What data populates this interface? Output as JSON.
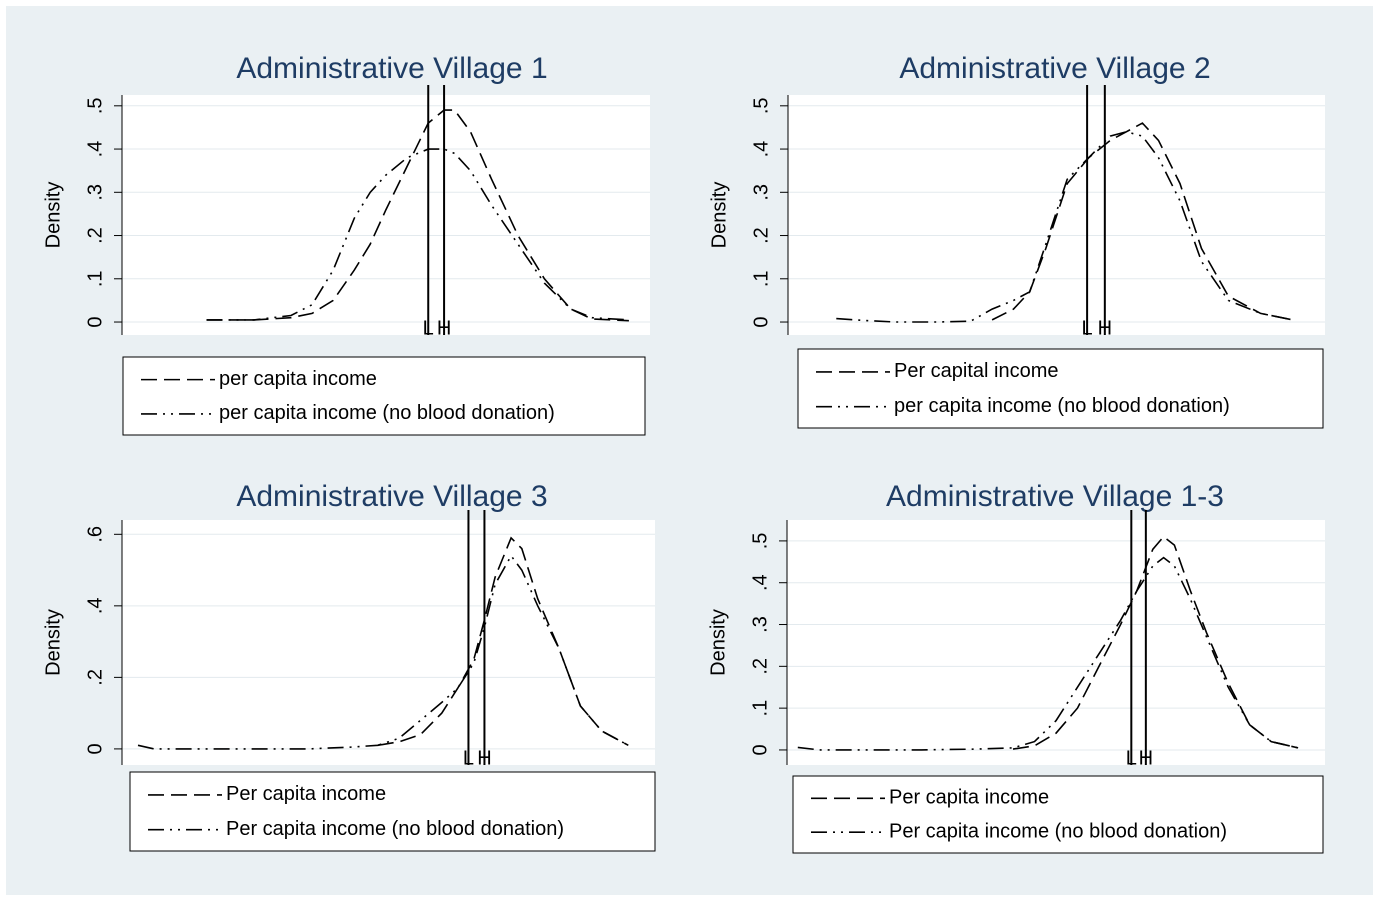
{
  "chart_data": [
    {
      "type": "line",
      "title": "Administrative Village 1",
      "y_label": "Density",
      "x": [
        16,
        25,
        32,
        36,
        40,
        44,
        47,
        50,
        54,
        58,
        61,
        63,
        66,
        70,
        75,
        80,
        85,
        89,
        96
      ],
      "xlim": [
        0,
        100
      ],
      "ylim": [
        -0.03,
        0.525
      ],
      "yticks": [
        0,
        {
          "value": 0.1,
          "label": ".1"
        },
        {
          "value": 0.2,
          "label": ".2"
        },
        {
          "value": 0.3,
          "label": ".3"
        },
        {
          "value": 0.4,
          "label": ".4"
        },
        {
          "value": 0.5,
          "label": ".5"
        }
      ],
      "grid": true,
      "vlines": [
        {
          "value": 58,
          "label": "L"
        },
        {
          "value": 61,
          "label": "H"
        }
      ],
      "series": [
        {
          "name": "per capita income",
          "color": "#000000",
          "dash": "dashed",
          "values": [
            0.005,
            0.005,
            0.01,
            0.02,
            0.05,
            0.12,
            0.18,
            0.26,
            0.36,
            0.46,
            0.49,
            0.49,
            0.44,
            0.33,
            0.2,
            0.1,
            0.03,
            0.007,
            0.003
          ]
        },
        {
          "name": "per capita income (no blood donation)",
          "color": "#000000",
          "dash": "dashdotdot",
          "values": [
            0.005,
            0.005,
            0.015,
            0.04,
            0.12,
            0.24,
            0.3,
            0.34,
            0.38,
            0.4,
            0.4,
            0.39,
            0.35,
            0.27,
            0.18,
            0.09,
            0.03,
            0.01,
            0.005
          ]
        }
      ]
    },
    {
      "type": "line",
      "title": "Administrative Village 2",
      "y_label": "Density",
      "x": [
        9,
        15,
        20,
        28,
        34,
        38,
        42,
        45,
        48,
        52,
        56,
        60,
        63,
        66,
        69,
        73,
        77,
        82,
        88,
        94
      ],
      "xlim": [
        0,
        100
      ],
      "ylim": [
        -0.03,
        0.525
      ],
      "yticks": [
        0,
        {
          "value": 0.1,
          "label": ".1"
        },
        {
          "value": 0.2,
          "label": ".2"
        },
        {
          "value": 0.3,
          "label": ".3"
        },
        {
          "value": 0.4,
          "label": ".4"
        },
        {
          "value": 0.5,
          "label": ".5"
        }
      ],
      "grid": true,
      "vlines": [
        {
          "value": 55.7,
          "label": "L"
        },
        {
          "value": 59,
          "label": "H"
        }
      ],
      "series": [
        {
          "name": "Per capital income",
          "color": "#000000",
          "dash": "dashed",
          "values": [
            null,
            null,
            null,
            null,
            null,
            0.005,
            0.03,
            0.07,
            0.17,
            0.32,
            0.38,
            0.42,
            0.44,
            0.46,
            0.42,
            0.32,
            0.17,
            0.06,
            0.02,
            0.005
          ]
        },
        {
          "name": "per capita income (no blood donation)",
          "color": "#000000",
          "dash": "dashdotdot",
          "values": [
            0.008,
            0.003,
            0,
            0,
            0.002,
            0.03,
            0.05,
            0.07,
            0.18,
            0.33,
            0.38,
            0.43,
            0.44,
            0.43,
            0.38,
            0.28,
            0.14,
            0.05,
            0.02,
            0.005
          ]
        }
      ]
    },
    {
      "type": "line",
      "title": "Administrative Village 3",
      "y_label": "Density",
      "x": [
        3,
        6,
        15,
        25,
        35,
        43,
        48,
        52,
        56,
        60,
        63,
        66,
        68,
        70,
        73,
        75,
        78,
        82,
        86,
        90,
        95
      ],
      "xlim": [
        0,
        100
      ],
      "ylim": [
        -0.045,
        0.64
      ],
      "yticks": [
        0,
        {
          "value": 0.2,
          "label": ".2"
        },
        {
          "value": 0.4,
          "label": ".4"
        },
        {
          "value": 0.6,
          "label": ".6"
        }
      ],
      "grid": true,
      "vlines": [
        {
          "value": 65,
          "label": "L"
        },
        {
          "value": 68,
          "label": "H"
        }
      ],
      "series": [
        {
          "name": "Per capita income",
          "color": "#000000",
          "dash": "dashed",
          "values": [
            null,
            null,
            null,
            null,
            null,
            null,
            0.01,
            0.02,
            0.04,
            0.1,
            0.17,
            0.25,
            0.36,
            0.48,
            0.59,
            0.56,
            0.42,
            0.28,
            0.12,
            0.05,
            0.01
          ]
        },
        {
          "name": "Per capita income (no blood donation)",
          "color": "#000000",
          "dash": "dashdotdot",
          "values": [
            0.01,
            0,
            0,
            0,
            0,
            0.005,
            0.01,
            0.03,
            0.08,
            0.13,
            0.17,
            0.24,
            0.34,
            0.46,
            0.54,
            0.5,
            0.4,
            0.28,
            0.12,
            0.05,
            0.01
          ]
        }
      ]
    },
    {
      "type": "line",
      "title": "Administrative Village 1-3",
      "y_label": "Density",
      "x": [
        2,
        6,
        15,
        25,
        35,
        42,
        46,
        50,
        54,
        58,
        62,
        65,
        68,
        70,
        72,
        75,
        78,
        82,
        86,
        90,
        95
      ],
      "xlim": [
        0,
        100
      ],
      "ylim": [
        -0.036,
        0.55
      ],
      "yticks": [
        0,
        {
          "value": 0.1,
          "label": ".1"
        },
        {
          "value": 0.2,
          "label": ".2"
        },
        {
          "value": 0.3,
          "label": ".3"
        },
        {
          "value": 0.4,
          "label": ".4"
        },
        {
          "value": 0.5,
          "label": ".5"
        }
      ],
      "grid": true,
      "vlines": [
        {
          "value": 64,
          "label": "L"
        },
        {
          "value": 66.7,
          "label": "H"
        }
      ],
      "series": [
        {
          "name": "Per capita income",
          "color": "#000000",
          "dash": "dashed",
          "values": [
            null,
            null,
            null,
            null,
            null,
            0.002,
            0.01,
            0.04,
            0.1,
            0.2,
            0.3,
            0.38,
            0.48,
            0.51,
            0.49,
            0.38,
            0.28,
            0.16,
            0.06,
            0.02,
            0.005
          ]
        },
        {
          "name": "Per capita income (no blood donation)",
          "color": "#000000",
          "dash": "dashdotdot",
          "values": [
            0.006,
            0,
            0,
            0,
            0.002,
            0.005,
            0.02,
            0.07,
            0.15,
            0.23,
            0.31,
            0.38,
            0.44,
            0.46,
            0.44,
            0.36,
            0.27,
            0.15,
            0.06,
            0.02,
            0.005
          ]
        }
      ]
    }
  ]
}
